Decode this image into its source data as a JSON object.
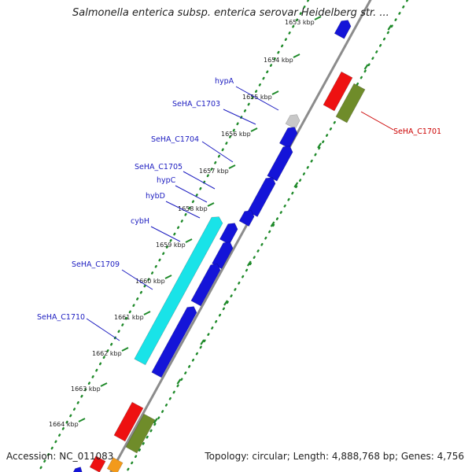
{
  "title": "Salmonella enterica subsp. enterica serovar Heidelberg str. ...",
  "footer": {
    "accession": "Accession: NC_011083",
    "summary": "Topology: circular; Length: 4,888,768 bp; Genes: 4,756"
  },
  "colors": {
    "forward_cds": "#1414d8",
    "reverse_cds": "#ee1111",
    "reverse_other": "#6f8c2a",
    "cyan_feature": "#19e3e8",
    "pseudo_feature": "#c8c8c8",
    "orange_feature": "#f39a1b",
    "backbone": "#8c8c8c",
    "label_blue": "#1c1cc0",
    "label_red": "#cc0000",
    "dots": "#1f8a2a"
  },
  "ticks": [
    "1653 kbp",
    "1654 kbp",
    "1655 kbp",
    "1656 kbp",
    "1657 kbp",
    "1658 kbp",
    "1659 kbp",
    "1660 kbp",
    "1661 kbp",
    "1662 kbp",
    "1663 kbp",
    "1664 kbp"
  ],
  "genes": [
    {
      "name": "hypA",
      "strand": "forward"
    },
    {
      "name": "SeHA_C1703",
      "strand": "forward"
    },
    {
      "name": "SeHA_C1704",
      "strand": "forward"
    },
    {
      "name": "SeHA_C1705",
      "strand": "forward"
    },
    {
      "name": "hypC",
      "strand": "forward"
    },
    {
      "name": "hybD",
      "strand": "forward"
    },
    {
      "name": "cybH",
      "strand": "forward"
    },
    {
      "name": "SeHA_C1709",
      "strand": "forward"
    },
    {
      "name": "SeHA_C1710",
      "strand": "forward"
    },
    {
      "name": "SeHA_C1701",
      "strand": "reverse"
    }
  ]
}
